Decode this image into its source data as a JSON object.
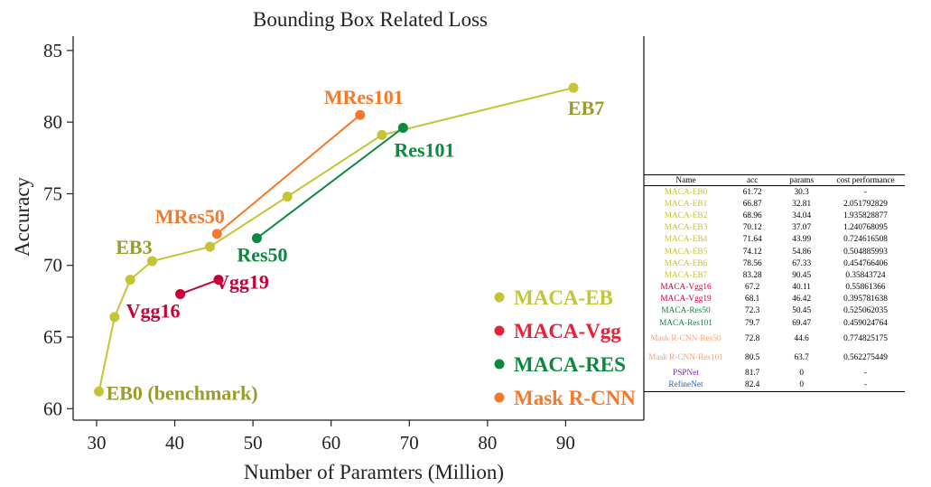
{
  "chart_data": {
    "type": "line",
    "title": "Bounding Box Related Loss",
    "xlabel": "Number of Paramters (Million)",
    "ylabel": "Accuracy",
    "xlim": [
      27,
      100
    ],
    "ylim": [
      59.2,
      86
    ],
    "xticks": [
      30,
      40,
      50,
      60,
      70,
      80,
      90
    ],
    "yticks": [
      60,
      65,
      70,
      75,
      80,
      85
    ],
    "grid": false,
    "legend_position": "bottom-right",
    "series": [
      {
        "name": "MACA-EB",
        "color": "#c4c437",
        "points": [
          [
            30.3,
            61.2
          ],
          [
            32.3,
            66.4
          ],
          [
            34.3,
            69.0
          ],
          [
            37.1,
            70.3
          ],
          [
            44.5,
            71.3
          ],
          [
            54.4,
            74.8
          ],
          [
            66.5,
            79.1
          ],
          [
            91.0,
            82.4
          ]
        ]
      },
      {
        "name": "MACA-Vgg",
        "color": "#c8003a",
        "points": [
          [
            40.7,
            68.0
          ],
          [
            45.6,
            69.0
          ]
        ]
      },
      {
        "name": "MACA-RES",
        "color": "#0a8a3f",
        "points": [
          [
            50.5,
            71.9
          ],
          [
            69.2,
            79.6
          ]
        ]
      },
      {
        "name": "Mask R-CNN",
        "color": "#f5792a",
        "points": [
          [
            45.4,
            72.2
          ],
          [
            63.7,
            80.5
          ]
        ]
      }
    ],
    "annotations": [
      {
        "text": "EB0 (benchmark)",
        "x": 30.3,
        "y": 61.2,
        "color": "#9b9b2a"
      },
      {
        "text": "EB3",
        "x": 37.1,
        "y": 70.3,
        "color": "#9b9b2a"
      },
      {
        "text": "EB7",
        "x": 91.0,
        "y": 82.4,
        "color": "#9b9b2a"
      },
      {
        "text": "Vgg16",
        "x": 40.7,
        "y": 68.0,
        "color": "#c8003a"
      },
      {
        "text": "Vgg19",
        "x": 45.6,
        "y": 69.0,
        "color": "#c8003a"
      },
      {
        "text": "Res50",
        "x": 50.5,
        "y": 71.9,
        "color": "#0a8a3f"
      },
      {
        "text": "Res101",
        "x": 69.2,
        "y": 79.6,
        "color": "#0a8a3f"
      },
      {
        "text": "MRes50",
        "x": 45.4,
        "y": 72.2,
        "color": "#f5792a"
      },
      {
        "text": "MRes101",
        "x": 63.7,
        "y": 80.5,
        "color": "#f5792a"
      }
    ],
    "legend": [
      {
        "label": "MACA-EB",
        "color": "#c4c437"
      },
      {
        "label": "MACA-Vgg",
        "color": "#e8213a"
      },
      {
        "label": "MACA-RES",
        "color": "#0a8a3f"
      },
      {
        "label": "Mask R-CNN",
        "color": "#f5792a"
      }
    ]
  },
  "table": {
    "headers": [
      "Name",
      "acc",
      "params",
      "cost performance"
    ],
    "rows": [
      {
        "name": "MACA-EB0",
        "color": "#c4c437",
        "acc": "61.72",
        "params": "30.3",
        "cp": "-"
      },
      {
        "name": "MACA-EB1",
        "color": "#c4c437",
        "acc": "66.87",
        "params": "32.81",
        "cp": "2.051792829"
      },
      {
        "name": "MACA-EB2",
        "color": "#c4c437",
        "acc": "68.96",
        "params": "34.04",
        "cp": "1.935828877"
      },
      {
        "name": "MACA-EB3",
        "color": "#c4c437",
        "acc": "70.12",
        "params": "37.07",
        "cp": "1.240768095"
      },
      {
        "name": "MACA-EB4",
        "color": "#c4c437",
        "acc": "71.64",
        "params": "43.99",
        "cp": "0.724616508"
      },
      {
        "name": "MACA-EB5",
        "color": "#c4c437",
        "acc": "74.12",
        "params": "54.86",
        "cp": "0.504885993"
      },
      {
        "name": "MACA-EB6",
        "color": "#c4c437",
        "acc": "78.56",
        "params": "67.33",
        "cp": "0.454766406"
      },
      {
        "name": "MACA-EB7",
        "color": "#c4c437",
        "acc": "83.28",
        "params": "90.45",
        "cp": "0.35843724"
      },
      {
        "name": "MACA-Vgg16",
        "color": "#c8003a",
        "acc": "67.2",
        "params": "40.11",
        "cp": "0.55861366"
      },
      {
        "name": "MACA-Vgg19",
        "color": "#c8003a",
        "acc": "68.1",
        "params": "46.42",
        "cp": "0.395781638"
      },
      {
        "name": "MACA-Res50",
        "color": "#0a8a3f",
        "acc": "72.3",
        "params": "50.45",
        "cp": "0.525062035"
      },
      {
        "name": "MACA-Res101",
        "color": "#0a8a3f",
        "acc": "79.7",
        "params": "69.47",
        "cp": "0.459024764"
      },
      {
        "name": "Mask R-CNN-Res50",
        "color": "#f5a37a",
        "acc": "72.8",
        "params": "44.6",
        "cp": "0.774825175",
        "tall": true
      },
      {
        "name": "Mask R-CNN-Res101",
        "color": "#f5a37a",
        "acc": "80.5",
        "params": "63.7",
        "cp": "0.562275449",
        "tall": true
      },
      {
        "name": "PSPNet",
        "color": "#7b2a9a",
        "acc": "81.7",
        "params": "0",
        "cp": "-"
      },
      {
        "name": "RefineNet",
        "color": "#2a5fbf",
        "acc": "82.4",
        "params": "0",
        "cp": "-"
      }
    ]
  }
}
